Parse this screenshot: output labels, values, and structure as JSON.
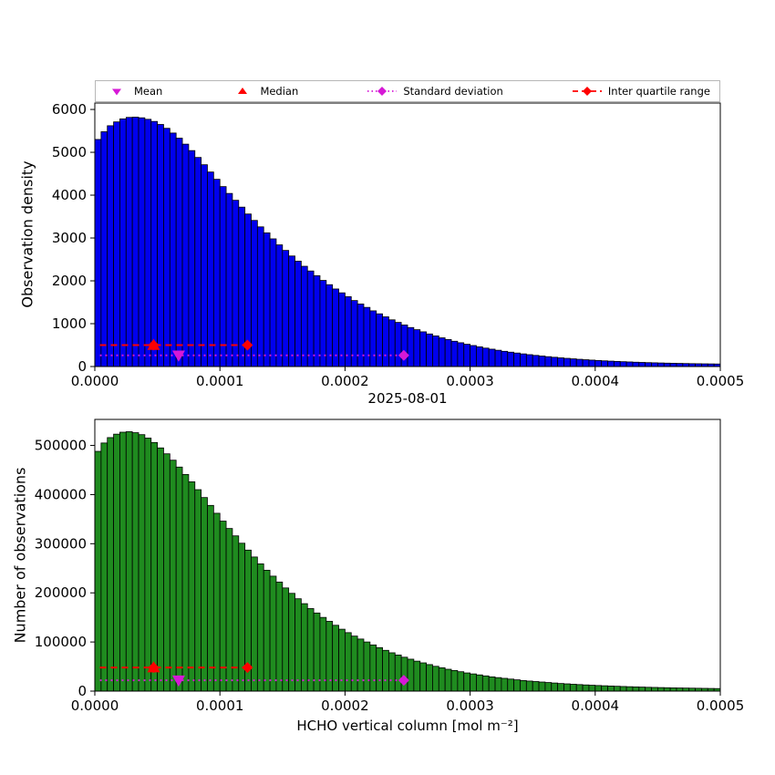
{
  "figure": {
    "background": "#ffffff"
  },
  "legend": {
    "items": [
      {
        "label": "Mean",
        "marker": "triangle-down",
        "color": "#d619d6"
      },
      {
        "label": "Median",
        "marker": "triangle-up",
        "color": "#ff0000"
      },
      {
        "label": "Standard deviation",
        "marker": "diamond-dotted",
        "color": "#d619d6"
      },
      {
        "label": "Inter quartile range",
        "marker": "diamond-dashed",
        "color": "#ff0000"
      }
    ]
  },
  "chart_data": [
    {
      "type": "bar",
      "title": "2025-08-01",
      "xlabel": "",
      "ylabel": "Observation density",
      "bar_color": "#0000ee",
      "edge_color": "#000000",
      "grid": false,
      "xlim": [
        0,
        0.0005
      ],
      "ylim": [
        0,
        6150
      ],
      "xticks": [
        0,
        0.0001,
        0.0002,
        0.0003,
        0.0004,
        0.0005
      ],
      "xtick_labels": [
        "0.0000",
        "0.0001",
        "0.0002",
        "0.0003",
        "0.0004",
        "0.0005"
      ],
      "yticks": [
        0,
        1000,
        2000,
        3000,
        4000,
        5000,
        6000
      ],
      "bin_start": 0,
      "bin_width": 5e-06,
      "values": [
        5300,
        5480,
        5620,
        5710,
        5780,
        5815,
        5820,
        5805,
        5770,
        5720,
        5650,
        5560,
        5450,
        5330,
        5190,
        5040,
        4880,
        4710,
        4540,
        4370,
        4200,
        4040,
        3880,
        3720,
        3560,
        3410,
        3260,
        3120,
        2980,
        2840,
        2710,
        2580,
        2460,
        2340,
        2230,
        2120,
        2010,
        1910,
        1810,
        1720,
        1630,
        1540,
        1460,
        1380,
        1300,
        1230,
        1160,
        1090,
        1030,
        970,
        910,
        860,
        810,
        760,
        715,
        670,
        630,
        590,
        555,
        520,
        490,
        460,
        430,
        405,
        380,
        355,
        335,
        315,
        295,
        277,
        260,
        245,
        230,
        216,
        203,
        191,
        180,
        169,
        159,
        150,
        141,
        133,
        126,
        119,
        113,
        107,
        101,
        96,
        91,
        87,
        83,
        79,
        76,
        73,
        70,
        67,
        65,
        63,
        61,
        59
      ],
      "markers": {
        "mean_x": 6.7e-05,
        "median_x": 4.7e-05,
        "iqr_x0": 4e-06,
        "iqr_x1": 0.000122,
        "iqr_diamonds": [
          4.7e-05,
          0.000122
        ],
        "std_x0": 4e-06,
        "std_x1": 0.000247,
        "std_diamond": 0.000247,
        "iqr_y": 500,
        "std_y": 260
      }
    },
    {
      "type": "bar",
      "title": "",
      "xlabel": "HCHO vertical column [mol m⁻²]",
      "ylabel": "Number of observations",
      "bar_color": "#1f8b1f",
      "edge_color": "#000000",
      "grid": false,
      "xlim": [
        0,
        0.0005
      ],
      "ylim": [
        0,
        553000
      ],
      "xticks": [
        0,
        0.0001,
        0.0002,
        0.0003,
        0.0004,
        0.0005
      ],
      "xtick_labels": [
        "0.0000",
        "0.0001",
        "0.0002",
        "0.0003",
        "0.0004",
        "0.0005"
      ],
      "yticks": [
        0,
        100000,
        200000,
        300000,
        400000,
        500000
      ],
      "bin_start": 0,
      "bin_width": 5e-06,
      "values": [
        488000,
        505000,
        516000,
        523000,
        527000,
        528000,
        526000,
        522000,
        515000,
        506000,
        495000,
        483000,
        470000,
        456000,
        441000,
        426000,
        410000,
        394000,
        378000,
        362000,
        346000,
        331000,
        316000,
        301000,
        287000,
        273000,
        259000,
        246000,
        234000,
        222000,
        210000,
        199000,
        188000,
        178000,
        168000,
        159000,
        150000,
        142000,
        134000,
        126000,
        119000,
        112000,
        106000,
        100000,
        94000,
        88500,
        83000,
        78000,
        73500,
        69000,
        65000,
        61000,
        57500,
        54000,
        50500,
        47500,
        44500,
        42000,
        39500,
        37000,
        35000,
        33000,
        31000,
        29000,
        27500,
        26000,
        24500,
        23000,
        21500,
        20500,
        19500,
        18500,
        17500,
        16500,
        15500,
        14800,
        14000,
        13300,
        12600,
        12000,
        11400,
        10900,
        10400,
        9900,
        9400,
        9000,
        8600,
        8200,
        7800,
        7500,
        7200,
        6900,
        6600,
        6400,
        6200,
        6000,
        5800,
        5600,
        5400,
        5200
      ],
      "markers": {
        "mean_x": 6.7e-05,
        "median_x": 4.7e-05,
        "iqr_x0": 4e-06,
        "iqr_x1": 0.000122,
        "iqr_diamonds": [
          4.7e-05,
          0.000122
        ],
        "std_x0": 4e-06,
        "std_x1": 0.000247,
        "std_diamond": 0.000247,
        "iqr_y": 48000,
        "std_y": 22000
      }
    }
  ]
}
